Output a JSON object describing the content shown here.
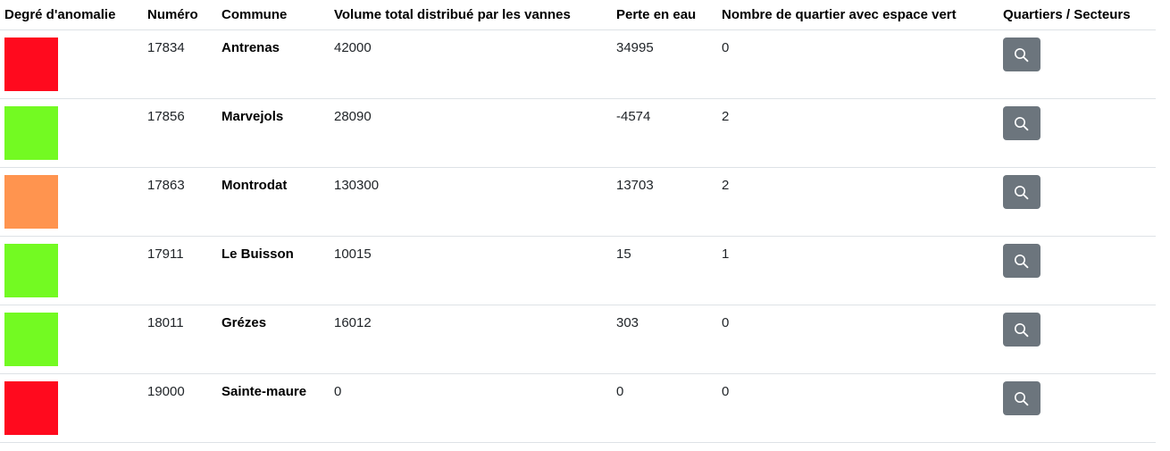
{
  "table": {
    "headers": {
      "anomaly": "Degré d'anomalie",
      "number": "Numéro",
      "commune": "Commune",
      "volume": "Volume total distribué par les vannes",
      "loss": "Perte en eau",
      "green_districts": "Nombre de quartier avec espace vert",
      "sectors": "Quartiers / Secteurs"
    },
    "rows": [
      {
        "anomaly_color": "#ff0a1e",
        "number": "17834",
        "commune": "Antrenas",
        "volume": "42000",
        "loss": "34995",
        "green_districts": "0",
        "action_icon": "search-icon"
      },
      {
        "anomaly_color": "#73fa22",
        "number": "17856",
        "commune": "Marvejols",
        "volume": "28090",
        "loss": "-4574",
        "green_districts": "2",
        "action_icon": "search-icon"
      },
      {
        "anomaly_color": "#ff944f",
        "number": "17863",
        "commune": "Montrodat",
        "volume": "130300",
        "loss": "13703",
        "green_districts": "2",
        "action_icon": "search-icon"
      },
      {
        "anomaly_color": "#73fa22",
        "number": "17911",
        "commune": "Le Buisson",
        "volume": "10015",
        "loss": "15",
        "green_districts": "1",
        "action_icon": "search-icon"
      },
      {
        "anomaly_color": "#73fa22",
        "number": "18011",
        "commune": "Grézes",
        "volume": "16012",
        "loss": "303",
        "green_districts": "0",
        "action_icon": "search-icon"
      },
      {
        "anomaly_color": "#ff0a1e",
        "number": "19000",
        "commune": "Sainte-maure",
        "volume": "0",
        "loss": "0",
        "green_districts": "0",
        "action_icon": "search-icon"
      }
    ]
  },
  "colors": {
    "button_bg": "#6c757d",
    "border": "#dee2e6"
  }
}
